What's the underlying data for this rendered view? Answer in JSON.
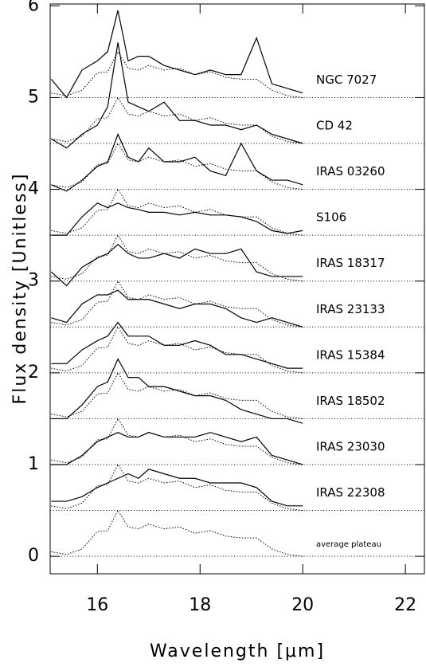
{
  "chart_data": {
    "type": "line",
    "xlabel": "Wavelength [μm]",
    "ylabel": "Flux density [Unitless]",
    "xlim": [
      15.08,
      22.37
    ],
    "ylim": [
      -0.19,
      6.02
    ],
    "xticks": [
      16,
      18,
      20,
      22
    ],
    "yticks": [
      0,
      1,
      2,
      3,
      4,
      5,
      6
    ],
    "color": "#000000",
    "hlines": [
      0,
      0.5,
      1.0,
      1.5,
      2.0,
      2.5,
      3.0,
      3.5,
      4.0,
      4.5,
      5.0
    ],
    "x": [
      15.1,
      15.4,
      15.7,
      16.0,
      16.2,
      16.4,
      16.6,
      16.8,
      17.0,
      17.3,
      17.6,
      17.9,
      18.2,
      18.5,
      18.8,
      19.1,
      19.4,
      19.7,
      20.0
    ],
    "series": [
      {
        "name": "NGC 7027",
        "style": "solid",
        "baseline": 5.0,
        "values": [
          5.2,
          5.0,
          5.3,
          5.4,
          5.5,
          5.95,
          5.4,
          5.45,
          5.45,
          5.35,
          5.3,
          5.25,
          5.3,
          5.25,
          5.25,
          5.65,
          5.15,
          5.1,
          5.05
        ],
        "plateau": [
          5.05,
          5.02,
          5.08,
          5.27,
          5.28,
          5.5,
          5.32,
          5.3,
          5.35,
          5.3,
          5.32,
          5.25,
          5.28,
          5.22,
          5.2,
          5.2,
          5.08,
          5.02,
          5.0
        ]
      },
      {
        "name": "CD 42",
        "style": "solid",
        "baseline": 4.5,
        "values": [
          4.55,
          4.45,
          4.6,
          4.7,
          4.9,
          5.6,
          4.95,
          4.9,
          4.85,
          4.95,
          4.75,
          4.75,
          4.7,
          4.7,
          4.65,
          4.7,
          4.6,
          4.55,
          4.5
        ],
        "plateau": [
          4.55,
          4.52,
          4.58,
          4.77,
          4.78,
          5.0,
          4.82,
          4.8,
          4.85,
          4.8,
          4.82,
          4.75,
          4.78,
          4.72,
          4.7,
          4.7,
          4.58,
          4.52,
          4.5
        ]
      },
      {
        "name": "IRAS 03260",
        "style": "solid",
        "baseline": 4.0,
        "values": [
          4.05,
          3.98,
          4.1,
          4.25,
          4.3,
          4.6,
          4.35,
          4.3,
          4.45,
          4.3,
          4.3,
          4.35,
          4.2,
          4.15,
          4.5,
          4.2,
          4.1,
          4.1,
          4.05
        ],
        "plateau": [
          4.05,
          4.02,
          4.08,
          4.27,
          4.28,
          4.5,
          4.32,
          4.3,
          4.35,
          4.3,
          4.32,
          4.25,
          4.28,
          4.22,
          4.2,
          4.2,
          4.08,
          4.02,
          4.0
        ]
      },
      {
        "name": "S106",
        "style": "solid",
        "baseline": 3.5,
        "values": [
          3.5,
          3.5,
          3.7,
          3.85,
          3.8,
          3.85,
          3.8,
          3.78,
          3.75,
          3.75,
          3.72,
          3.75,
          3.72,
          3.72,
          3.7,
          3.65,
          3.55,
          3.52,
          3.55
        ],
        "plateau": [
          3.55,
          3.52,
          3.58,
          3.77,
          3.78,
          4.0,
          3.82,
          3.8,
          3.85,
          3.8,
          3.82,
          3.75,
          3.78,
          3.72,
          3.7,
          3.7,
          3.58,
          3.52,
          3.5
        ]
      },
      {
        "name": "IRAS 18317",
        "style": "solid",
        "baseline": 3.0,
        "values": [
          3.1,
          2.95,
          3.15,
          3.25,
          3.3,
          3.4,
          3.3,
          3.25,
          3.25,
          3.3,
          3.25,
          3.35,
          3.3,
          3.3,
          3.35,
          3.1,
          3.05,
          3.05,
          3.05
        ],
        "plateau": [
          3.05,
          3.02,
          3.08,
          3.27,
          3.28,
          3.5,
          3.32,
          3.3,
          3.35,
          3.3,
          3.32,
          3.25,
          3.28,
          3.22,
          3.2,
          3.2,
          3.08,
          3.02,
          3.0
        ]
      },
      {
        "name": "IRAS 23133",
        "style": "solid",
        "baseline": 2.5,
        "values": [
          2.6,
          2.55,
          2.75,
          2.85,
          2.85,
          2.9,
          2.8,
          2.8,
          2.8,
          2.75,
          2.7,
          2.75,
          2.75,
          2.7,
          2.6,
          2.55,
          2.6,
          2.55,
          2.5
        ],
        "plateau": [
          2.55,
          2.52,
          2.58,
          2.77,
          2.78,
          3.0,
          2.82,
          2.8,
          2.85,
          2.8,
          2.82,
          2.75,
          2.78,
          2.72,
          2.7,
          2.7,
          2.58,
          2.52,
          2.5
        ]
      },
      {
        "name": "IRAS 15384",
        "style": "solid",
        "baseline": 2.0,
        "values": [
          2.1,
          2.1,
          2.25,
          2.35,
          2.4,
          2.55,
          2.4,
          2.4,
          2.4,
          2.3,
          2.3,
          2.35,
          2.3,
          2.2,
          2.2,
          2.15,
          2.1,
          2.05,
          2.05
        ],
        "plateau": [
          2.05,
          2.02,
          2.08,
          2.27,
          2.28,
          2.5,
          2.32,
          2.3,
          2.35,
          2.3,
          2.32,
          2.25,
          2.28,
          2.22,
          2.2,
          2.2,
          2.08,
          2.02,
          2.0
        ]
      },
      {
        "name": "IRAS 18502",
        "style": "solid",
        "baseline": 1.5,
        "values": [
          1.5,
          1.5,
          1.65,
          1.85,
          1.9,
          2.15,
          1.95,
          1.95,
          1.85,
          1.85,
          1.8,
          1.75,
          1.75,
          1.7,
          1.6,
          1.55,
          1.5,
          1.5,
          1.45
        ],
        "plateau": [
          1.55,
          1.52,
          1.58,
          1.77,
          1.78,
          2.0,
          1.82,
          1.8,
          1.85,
          1.8,
          1.82,
          1.75,
          1.78,
          1.72,
          1.7,
          1.7,
          1.58,
          1.52,
          1.5
        ]
      },
      {
        "name": "IRAS 23030",
        "style": "solid",
        "baseline": 1.0,
        "values": [
          1.0,
          1.0,
          1.1,
          1.25,
          1.3,
          1.35,
          1.3,
          1.3,
          1.35,
          1.3,
          1.3,
          1.3,
          1.35,
          1.3,
          1.25,
          1.3,
          1.1,
          1.05,
          1.0
        ],
        "plateau": [
          1.05,
          1.02,
          1.08,
          1.27,
          1.28,
          1.5,
          1.32,
          1.3,
          1.35,
          1.3,
          1.32,
          1.25,
          1.28,
          1.22,
          1.2,
          1.2,
          1.08,
          1.02,
          1.0
        ]
      },
      {
        "name": "IRAS 22308",
        "style": "solid",
        "baseline": 0.5,
        "values": [
          0.6,
          0.6,
          0.65,
          0.75,
          0.8,
          0.85,
          0.9,
          0.85,
          0.95,
          0.9,
          0.85,
          0.85,
          0.8,
          0.8,
          0.8,
          0.75,
          0.6,
          0.55,
          0.55
        ],
        "plateau": [
          0.55,
          0.52,
          0.58,
          0.77,
          0.78,
          1.0,
          0.82,
          0.8,
          0.85,
          0.8,
          0.82,
          0.75,
          0.78,
          0.72,
          0.7,
          0.7,
          0.58,
          0.52,
          0.5
        ]
      },
      {
        "name": "average plateau",
        "style": "dotted",
        "baseline": 0,
        "values": [
          0.05,
          0.02,
          0.08,
          0.27,
          0.28,
          0.5,
          0.32,
          0.3,
          0.35,
          0.3,
          0.32,
          0.25,
          0.28,
          0.22,
          0.2,
          0.2,
          0.08,
          0.02,
          0.0
        ]
      }
    ]
  }
}
